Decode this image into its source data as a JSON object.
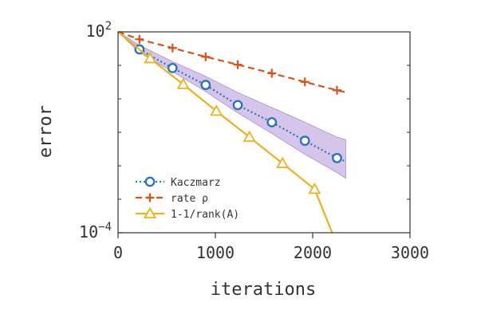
{
  "chart_data": {
    "type": "line",
    "title": "",
    "xlabel": "iterations",
    "ylabel": "error",
    "xlim": [
      0,
      3000
    ],
    "ylim": [
      0.0001,
      100
    ],
    "y_scale": "log",
    "x_ticks": [
      {
        "value": 0,
        "label": "0"
      },
      {
        "value": 1000,
        "label": "1000"
      },
      {
        "value": 2000,
        "label": "2000"
      },
      {
        "value": 3000,
        "label": "3000"
      }
    ],
    "y_ticks": [
      {
        "value": 0.0001,
        "base": "10",
        "exp": "−4"
      },
      {
        "value": 100,
        "base": "10",
        "exp": "2"
      }
    ],
    "grid": false,
    "legend_position": "bottom-left",
    "series": [
      {
        "name": "Kaczmarz",
        "color": "#2f74b5",
        "line_style": "dotted",
        "marker": "circle",
        "x": [
          0,
          220,
          560,
          900,
          1230,
          1580,
          1920,
          2250,
          2340
        ],
        "y": [
          100,
          30,
          8.3,
          2.6,
          0.65,
          0.2,
          0.056,
          0.017,
          0.0135
        ],
        "band_upper": [
          100,
          40,
          13,
          4.7,
          1.55,
          0.55,
          0.2,
          0.072,
          0.06
        ],
        "band_lower": [
          100,
          24,
          6.5,
          1.65,
          0.38,
          0.093,
          0.022,
          0.0063,
          0.0042
        ]
      },
      {
        "name": "rate ρ",
        "color": "#d95319",
        "line_style": "dashed",
        "marker": "plus",
        "x": [
          0,
          220,
          560,
          900,
          1230,
          1580,
          1920,
          2250,
          2350
        ],
        "y": [
          100,
          60,
          33,
          18,
          10.5,
          5.8,
          3.2,
          1.8,
          1.55
        ]
      },
      {
        "name": "1-1/rank(A)",
        "color": "#edb120",
        "line_style": "solid",
        "marker": "triangle",
        "x": [
          0,
          330,
          670,
          1010,
          1350,
          1690,
          2020,
          2200
        ],
        "y": [
          100,
          16,
          2.7,
          0.43,
          0.072,
          0.0118,
          0.002,
          0.0001
        ]
      }
    ]
  }
}
